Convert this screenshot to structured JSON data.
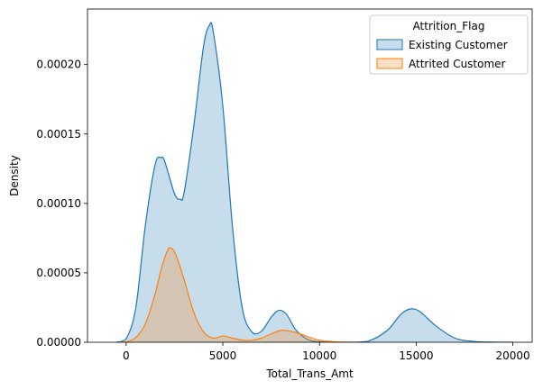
{
  "chart_data": {
    "type": "area",
    "xlabel": "Total_Trans_Amt",
    "ylabel": "Density",
    "xlim": [
      -2000,
      21000
    ],
    "ylim": [
      0,
      0.00024
    ],
    "xticks": [
      0,
      5000,
      10000,
      15000,
      20000
    ],
    "xtick_labels": [
      "0",
      "5000",
      "10000",
      "15000",
      "20000"
    ],
    "yticks": [
      0,
      5e-05,
      0.0001,
      0.00015,
      0.0002
    ],
    "ytick_labels": [
      "0.00000",
      "0.00005",
      "0.00010",
      "0.00015",
      "0.00020"
    ],
    "grid": false,
    "legend": {
      "title": "Attrition_Flag",
      "placement": "top-right"
    },
    "series": [
      {
        "name": "Existing Customer",
        "color": "#1f77b4",
        "fill": "rgba(31,119,180,0.25)",
        "x": [
          -500,
          0,
          500,
          1000,
          1500,
          1800,
          2000,
          2500,
          2800,
          3000,
          3500,
          4000,
          4300,
          4500,
          5000,
          5500,
          6000,
          6500,
          7000,
          7500,
          7900,
          8300,
          8800,
          9500,
          10500,
          11500,
          12500,
          13500,
          14200,
          14700,
          15200,
          16000,
          17000,
          18000,
          19000,
          20000
        ],
        "y": [
          0,
          2.5e-06,
          2.5e-05,
          8.5e-05,
          0.000128,
          0.000133,
          0.00013,
          0.000107,
          0.000103,
          0.000108,
          0.000156,
          0.000213,
          0.000228,
          0.000224,
          0.00017,
          8.3e-05,
          2.5e-05,
          7.5e-06,
          8e-06,
          1.8e-05,
          2.3e-05,
          2e-05,
          8.5e-06,
          1.5e-06,
          0,
          0,
          7e-07,
          8.5e-06,
          2e-05,
          2.4e-05,
          2.2e-05,
          1.2e-05,
          3e-06,
          6e-07,
          1e-07,
          0
        ]
      },
      {
        "name": "Attrited Customer",
        "color": "#ff7f0e",
        "fill": "rgba(255,127,14,0.25)",
        "x": [
          -500,
          0,
          500,
          1000,
          1500,
          1800,
          2000,
          2200,
          2400,
          2600,
          3000,
          3500,
          4000,
          4500,
          5000,
          5500,
          6000,
          6500,
          7000,
          7500,
          8000,
          8500,
          9000,
          9500,
          10000,
          11000,
          12000
        ],
        "y": [
          0,
          3e-07,
          3.5e-06,
          1.35e-05,
          3.5e-05,
          5.2e-05,
          6.1e-05,
          6.75e-05,
          6.7e-05,
          6.2e-05,
          4.5e-05,
          2.15e-05,
          7.5e-06,
          3e-06,
          4.5e-06,
          3e-06,
          1.5e-06,
          1.5e-06,
          3e-06,
          6e-06,
          8.5e-06,
          8e-06,
          6e-06,
          3.5e-06,
          1.5e-06,
          2e-07,
          0
        ]
      }
    ]
  }
}
